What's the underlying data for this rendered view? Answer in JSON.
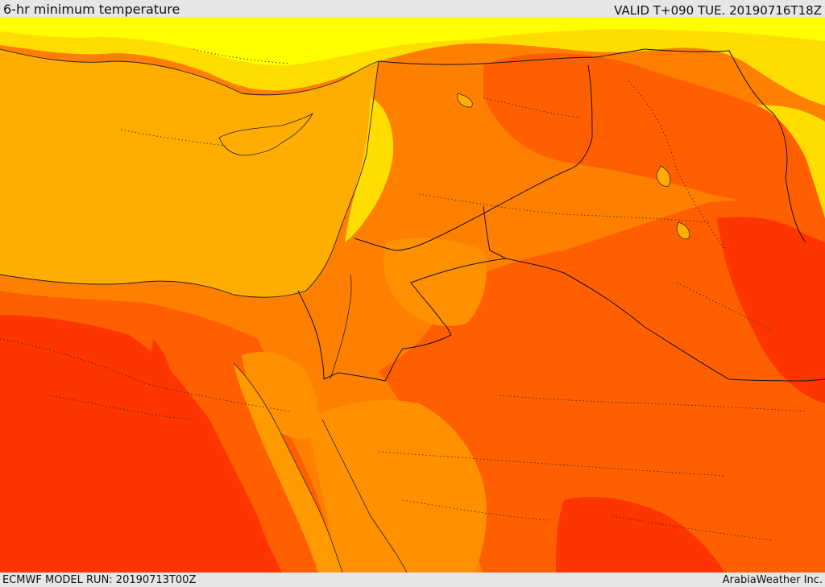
{
  "header": {
    "title": "6-hr minimum temperature",
    "valid": "VALID T+090 TUE. 20190716T18Z"
  },
  "footer": {
    "model_run": "ECMWF MODEL RUN: 20190713T00Z",
    "credit": "ArabiaWeather Inc."
  },
  "map": {
    "colors": {
      "sea": "#ffad00",
      "yellow": "#ffff00",
      "light_yellow": "#ffdd00",
      "orange": "#ff8000",
      "dark_orange": "#ff5f00",
      "red": "#ff3500"
    }
  }
}
